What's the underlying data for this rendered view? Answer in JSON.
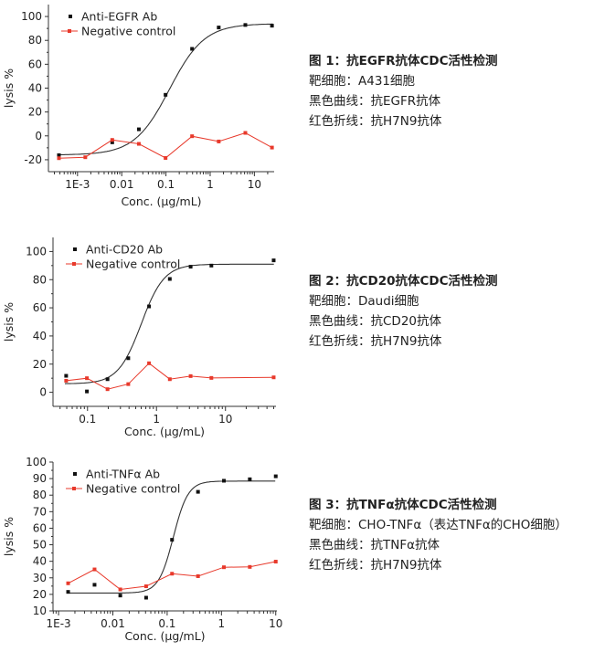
{
  "chart_data": [
    {
      "type": "scatter",
      "xscale": "log",
      "xlabel": "Conc. (μg/mL)",
      "ylabel": "lysis %",
      "xlim": [
        0.00022,
        28
      ],
      "ylim": [
        -30,
        110
      ],
      "xticks": [
        "1E-3",
        "0.01",
        "0.1",
        "1",
        "10"
      ],
      "xtick_values": [
        0.001,
        0.01,
        0.1,
        1,
        10
      ],
      "yticks": [
        -20,
        0,
        20,
        40,
        60,
        80,
        100
      ],
      "legend": "top-left",
      "series": [
        {
          "name": "Anti-EGFR Ab",
          "color": "#111111",
          "style": "points+fit",
          "x": [
            0.00038,
            0.0015,
            0.0061,
            0.0244,
            0.098,
            0.39,
            1.5625,
            6.25,
            25
          ],
          "y": [
            -16.2,
            null,
            -5.4,
            5.5,
            34.4,
            72.9,
            90.8,
            92.9,
            92.3
          ],
          "fit": {
            "bottom": -16,
            "top": 94,
            "ec50": 0.12,
            "hill": 1.1
          }
        },
        {
          "name": "Negative control",
          "color": "#e8392b",
          "style": "line+points",
          "x": [
            0.00038,
            0.0015,
            0.0061,
            0.0244,
            0.098,
            0.39,
            1.5625,
            6.25,
            25
          ],
          "y": [
            -18.7,
            -17.9,
            -3.4,
            -6.7,
            -18.5,
            -0.3,
            -4.7,
            2.5,
            -9.8
          ]
        }
      ]
    },
    {
      "type": "scatter",
      "xscale": "log",
      "xlabel": "Conc. (μg/mL)",
      "ylabel": "lysis %",
      "xlim": [
        0.0316,
        54
      ],
      "ylim": [
        -10,
        110
      ],
      "xticks": [
        "0.1",
        "1",
        "10"
      ],
      "xtick_values": [
        0.1,
        1,
        10
      ],
      "yticks": [
        0,
        20,
        40,
        60,
        80,
        100
      ],
      "legend": "top-left",
      "series": [
        {
          "name": "Anti-CD20 Ab",
          "color": "#111111",
          "style": "points+fit",
          "x": [
            0.049,
            0.098,
            0.195,
            0.39,
            0.78,
            1.56,
            3.125,
            6.25,
            50
          ],
          "y": [
            11.7,
            0.6,
            9.3,
            24.2,
            61,
            80.5,
            89.2,
            90,
            93.7
          ],
          "fit": {
            "bottom": 6,
            "top": 91,
            "ec50": 0.6,
            "hill": 2.6
          }
        },
        {
          "name": "Negative control",
          "color": "#e8392b",
          "style": "line+points",
          "x": [
            0.049,
            0.098,
            0.195,
            0.39,
            0.78,
            1.56,
            3.125,
            6.25,
            50
          ],
          "y": [
            8.2,
            10,
            2.2,
            5.8,
            20.6,
            9.3,
            11.5,
            10.2,
            10.6
          ]
        }
      ]
    },
    {
      "type": "scatter",
      "xscale": "log",
      "xlabel": "Conc. (μg/mL)",
      "ylabel": "lysis %",
      "xlim": [
        0.00079,
        10.5
      ],
      "ylim": [
        10,
        100
      ],
      "xticks": [
        "1E-3",
        "0.01",
        "0.1",
        "1",
        "10"
      ],
      "xtick_values": [
        0.001,
        0.01,
        0.1,
        1,
        10
      ],
      "yticks": [
        10,
        20,
        30,
        40,
        50,
        60,
        70,
        80,
        90,
        100
      ],
      "legend": "top-left",
      "series": [
        {
          "name": "Anti-TNFα Ab",
          "color": "#111111",
          "style": "points+fit",
          "x": [
            0.0015,
            0.0046,
            0.0137,
            0.041,
            0.123,
            0.37,
            1.11,
            3.33,
            10
          ],
          "y": [
            21.5,
            25.8,
            19.3,
            18.0,
            53,
            82,
            88.7,
            89.6,
            91.4
          ],
          "fit": {
            "bottom": 20.8,
            "top": 88.5,
            "ec50": 0.13,
            "hill": 3.2
          }
        },
        {
          "name": "Negative control",
          "color": "#e8392b",
          "style": "line+points",
          "x": [
            0.0015,
            0.0046,
            0.0137,
            0.041,
            0.123,
            0.37,
            1.11,
            3.33,
            10
          ],
          "y": [
            26.7,
            35.1,
            23,
            24.9,
            32.5,
            31,
            36.4,
            36.6,
            39.8
          ]
        }
      ]
    }
  ],
  "descriptions": [
    {
      "title": "图 1：抗EGFR抗体CDC活性检测",
      "target": "靶细胞：A431细胞",
      "black": "黑色曲线：抗EGFR抗体",
      "red": "红色折线：抗H7N9抗体"
    },
    {
      "title": "图 2：抗CD20抗体CDC活性检测",
      "target": "靶细胞：Daudi细胞",
      "black": "黑色曲线：抗CD20抗体",
      "red": "红色折线：抗H7N9抗体"
    },
    {
      "title": "图 3：抗TNFα抗体CDC活性检测",
      "target": "靶细胞：CHO-TNFα（表达TNFα的CHO细胞）",
      "black": "黑色曲线：抗TNFα抗体",
      "red": "红色折线：抗H7N9抗体"
    }
  ]
}
